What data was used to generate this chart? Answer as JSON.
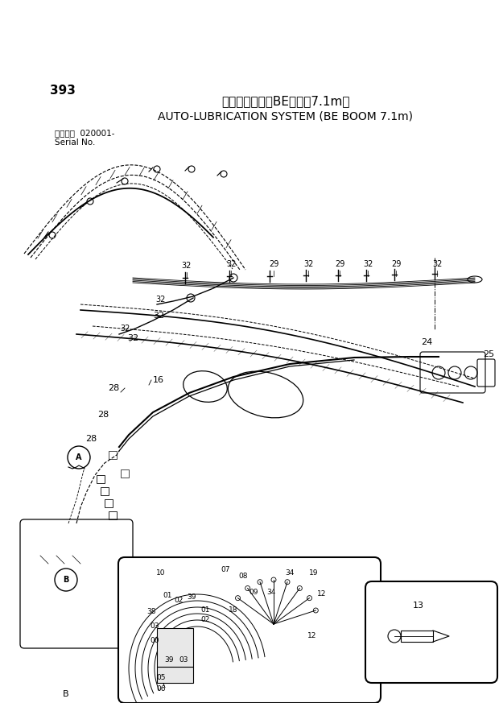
{
  "page_number": "393",
  "title_japanese": "自動給脹装置（BEブーム7.1m）",
  "title_english": "AUTO-LUBRICATION SYSTEM (BE BOOM 7.1m)",
  "serial_jp": "適用号機",
  "serial_num": "020001-",
  "serial_en": "Serial No.",
  "bg_color": "#ffffff",
  "lc": "#000000"
}
